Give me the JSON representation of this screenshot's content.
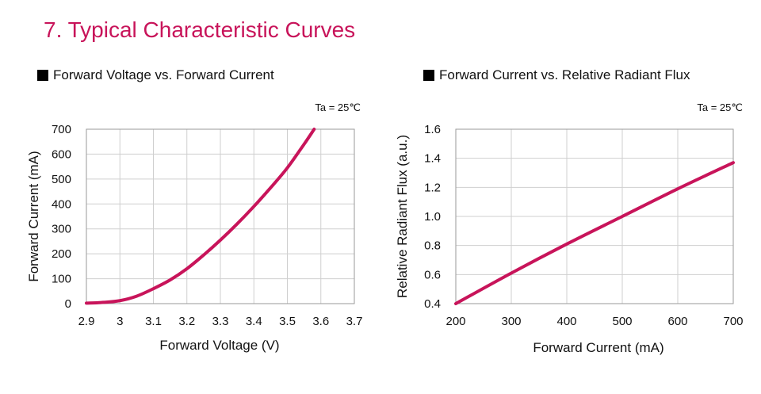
{
  "section_title": "7. Typical Characteristic Curves",
  "line_color": "#c8145a",
  "chart_data": [
    {
      "type": "line",
      "title": "Forward Voltage vs. Forward Current",
      "condition": "Ta = 25℃",
      "xlabel": "Forward Voltage (V)",
      "ylabel": "Forward Current (mA)",
      "xlim": [
        2.9,
        3.7
      ],
      "ylim": [
        0,
        700
      ],
      "x_ticks": [
        "2.9",
        "3",
        "3.1",
        "3.2",
        "3.3",
        "3.4",
        "3.5",
        "3.6",
        "3.7"
      ],
      "y_ticks": [
        "0",
        "100",
        "200",
        "300",
        "400",
        "500",
        "600",
        "700"
      ],
      "grid": true,
      "series": [
        {
          "x": [
            2.9,
            2.95,
            3.0,
            3.05,
            3.1,
            3.15,
            3.2,
            3.25,
            3.3,
            3.35,
            3.4,
            3.45,
            3.5,
            3.55,
            3.58
          ],
          "y": [
            2,
            5,
            12,
            30,
            60,
            95,
            140,
            195,
            255,
            320,
            390,
            465,
            545,
            640,
            700
          ]
        }
      ]
    },
    {
      "type": "line",
      "title": "Forward Current vs. Relative Radiant Flux",
      "condition": "Ta = 25℃",
      "xlabel": "Forward Current (mA)",
      "ylabel": "Relative Radiant Flux (a.u.)",
      "xlim": [
        200,
        700
      ],
      "ylim": [
        0.4,
        1.6
      ],
      "x_ticks": [
        "200",
        "300",
        "400",
        "500",
        "600",
        "700"
      ],
      "y_ticks": [
        "0.4",
        "0.6",
        "0.8",
        "1.0",
        "1.2",
        "1.4",
        "1.6"
      ],
      "grid": true,
      "series": [
        {
          "x": [
            200,
            300,
            400,
            500,
            600,
            700
          ],
          "y": [
            0.4,
            0.61,
            0.81,
            1.0,
            1.19,
            1.37
          ]
        }
      ]
    }
  ]
}
